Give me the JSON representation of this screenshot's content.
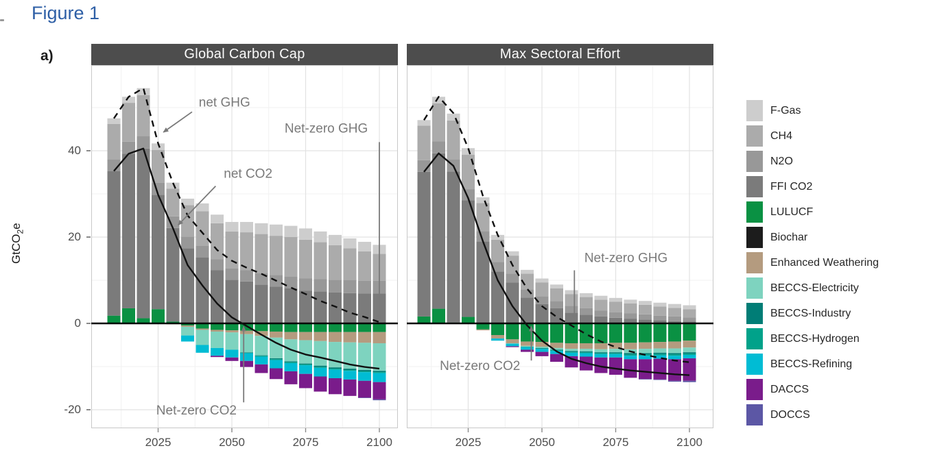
{
  "figure_label": "Figure 1",
  "panel_tag": "a)",
  "colors": {
    "title_blue": "#2E5FA6",
    "strip_bg": "#4D4D4D",
    "strip_text": "#FAFAFA",
    "annotation_gray": "#7A7A7A",
    "axis_text": "#4D4D4D",
    "grid_major": "#E2E2E2",
    "grid_minor": "#F1F1F1",
    "panel_border": "#C8C8C8",
    "zero_line": "#000000",
    "net_line": "#111111"
  },
  "chart_data": {
    "type": "bar",
    "stacked": true,
    "title": "Figure 1",
    "ylabel": "GtCO2e",
    "xlabel": "",
    "ylim": [
      -24.3,
      59.8
    ],
    "yticks": [
      40,
      20,
      0,
      -20
    ],
    "xticks": [
      2025,
      2050,
      2075,
      2100
    ],
    "grid": true,
    "legend_position": "right",
    "years": [
      2010,
      2015,
      2020,
      2025,
      2030,
      2035,
      2040,
      2045,
      2050,
      2055,
      2060,
      2065,
      2070,
      2075,
      2080,
      2085,
      2090,
      2095,
      2100
    ],
    "legend": [
      "F-Gas",
      "CH4",
      "N2O",
      "FFI CO2",
      "LULUCF",
      "Biochar",
      "Enhanced Weathering",
      "BECCS-Electricity",
      "BECCS-Industry",
      "BECCS-Hydrogen",
      "BECCS-Refining",
      "DACCS",
      "DOCCS"
    ],
    "series_colors": {
      "F-Gas": "#CDCDCD",
      "CH4": "#ABABAB",
      "N2O": "#989898",
      "FFI CO2": "#7B7B7B",
      "LULUCF": "#0A9143",
      "Biochar": "#1C1C1C",
      "Enhanced Weathering": "#B49B7F",
      "BECCS-Electricity": "#7ED3BF",
      "BECCS-Industry": "#007D76",
      "BECCS-Hydrogen": "#00A28A",
      "BECCS-Refining": "#00BCD4",
      "DACCS": "#7A1C8B",
      "DOCCS": "#5C57A5"
    },
    "stack_order": [
      "LULUCF",
      "FFI CO2",
      "N2O",
      "CH4",
      "F-Gas",
      "Biochar",
      "Enhanced Weathering",
      "BECCS-Electricity",
      "BECCS-Industry",
      "BECCS-Hydrogen",
      "BECCS-Refining",
      "DACCS",
      "DOCCS"
    ],
    "panels": [
      {
        "title": "Global Carbon Cap",
        "series": {
          "F-Gas": [
            1.3,
            1.4,
            1.6,
            1.5,
            1.4,
            1.5,
            1.8,
            2.0,
            2.2,
            2.4,
            2.5,
            2.6,
            2.6,
            2.6,
            2.5,
            2.4,
            2.3,
            2.2,
            2.1
          ],
          "CH4": [
            8.2,
            9.0,
            9.5,
            7.6,
            6.4,
            7.3,
            8.0,
            8.3,
            8.6,
            8.8,
            9.0,
            9.1,
            9.1,
            9.0,
            8.5,
            8.0,
            7.4,
            6.8,
            6.2
          ],
          "N2O": [
            2.7,
            2.8,
            2.9,
            2.8,
            2.7,
            2.7,
            2.7,
            2.6,
            2.6,
            2.6,
            2.7,
            2.7,
            2.8,
            2.8,
            2.9,
            2.9,
            3.0,
            3.0,
            3.0
          ],
          "FFI CO2": [
            33.5,
            35.8,
            39.3,
            26.5,
            21.7,
            17.4,
            15.3,
            12.3,
            10.1,
            9.7,
            9.0,
            8.5,
            8.1,
            7.6,
            7.4,
            7.2,
            7.0,
            6.9,
            6.9
          ],
          "LULUCF": [
            1.8,
            3.5,
            1.2,
            3.3,
            0.4,
            -0.5,
            -1.2,
            -1.5,
            -1.6,
            -1.7,
            -1.8,
            -1.9,
            -2.0,
            -2.0,
            -2.0,
            -2.0,
            -2.0,
            -2.0,
            -2.0
          ],
          "Biochar": [
            0,
            0,
            0,
            0,
            0,
            0,
            0,
            0,
            0,
            0,
            0,
            0,
            0,
            0,
            0,
            0,
            0,
            0,
            0
          ],
          "Enhanced Weathering": [
            0,
            0,
            0,
            0,
            -0.2,
            -0.3,
            -0.3,
            -0.4,
            -0.5,
            -0.8,
            -1.1,
            -1.4,
            -1.7,
            -1.9,
            -2.1,
            -2.3,
            -2.4,
            -2.5,
            -2.6
          ],
          "BECCS-Electricity": [
            0,
            0,
            0,
            0,
            0,
            -2.0,
            -3.5,
            -3.8,
            -4.0,
            -4.2,
            -4.5,
            -4.8,
            -5.1,
            -5.4,
            -5.7,
            -5.9,
            -6.1,
            -6.3,
            -6.4
          ],
          "BECCS-Industry": [
            0,
            0,
            0,
            0,
            0,
            0,
            0,
            0,
            0,
            -0.1,
            -0.1,
            -0.2,
            -0.2,
            -0.2,
            -0.3,
            -0.3,
            -0.3,
            -0.3,
            -0.3
          ],
          "BECCS-Hydrogen": [
            0,
            0,
            0,
            0,
            0,
            0,
            0,
            0,
            0,
            -0.1,
            -0.2,
            -0.2,
            -0.2,
            -0.2,
            -0.2,
            -0.2,
            -0.2,
            -0.2,
            -0.2
          ],
          "BECCS-Refining": [
            0,
            0,
            0,
            0,
            0,
            -1.4,
            -1.8,
            -1.8,
            -1.8,
            -1.8,
            -1.8,
            -1.9,
            -1.9,
            -2.0,
            -2.0,
            -2.0,
            -2.0,
            -2.0,
            -2.1
          ],
          "DACCS": [
            0,
            0,
            0,
            0,
            0,
            0,
            0,
            -0.3,
            -0.8,
            -1.4,
            -2.0,
            -2.5,
            -3.0,
            -3.3,
            -3.5,
            -3.7,
            -3.8,
            -3.9,
            -4.0
          ],
          "DOCCS": [
            0,
            0,
            0,
            0,
            0,
            0,
            0,
            0,
            0,
            0,
            0,
            0,
            0,
            0,
            0,
            0,
            0,
            -0.1,
            -0.2
          ]
        },
        "lines": [
          {
            "name": "net GHG",
            "style": "dashed",
            "values": [
              47.5,
              52.5,
              54.5,
              41.7,
              32.6,
              25.0,
              21.0,
              17.0,
              14.5,
              12.9,
              11.5,
              9.9,
              8.3,
              6.8,
              5.2,
              3.9,
              2.5,
              1.5,
              0.3
            ]
          },
          {
            "name": "net CO2",
            "style": "solid",
            "values": [
              35.3,
              39.3,
              40.5,
              29.8,
              22.1,
              13.5,
              8.8,
              4.6,
              1.4,
              -0.6,
              -2.6,
              -4.5,
              -6.1,
              -7.2,
              -7.9,
              -8.7,
              -9.5,
              -10.1,
              -10.5
            ]
          }
        ],
        "annotations": [
          {
            "label": "net GHG",
            "kind": "arrow",
            "text_year": 2047.5,
            "text_value": 51.0,
            "from_year": 2036.5,
            "from_value": 49.0,
            "to_year": 2026.8,
            "to_value": 44.3
          },
          {
            "label": "net CO2",
            "kind": "arrow",
            "text_year": 2055.5,
            "text_value": 34.5,
            "from_year": 2044.5,
            "from_value": 31.8,
            "to_year": 2031.8,
            "to_value": 22.8
          },
          {
            "label": "Net-zero GHG",
            "kind": "vline",
            "text_year": 2082.0,
            "text_value": 45.0,
            "year": 2100,
            "from_value": 42.0,
            "to_value": 0.9
          },
          {
            "label": "Net-zero CO2",
            "kind": "varrow",
            "text_year": 2038.0,
            "text_value": -20.3,
            "year": 2054,
            "from_value": -18.3,
            "to_value": -0.7
          }
        ]
      },
      {
        "title": "Max Sectoral Effort",
        "series": {
          "F-Gas": [
            1.3,
            1.5,
            1.6,
            1.5,
            1.3,
            1.1,
            1.0,
            0.9,
            0.9,
            0.9,
            0.9,
            0.9,
            0.9,
            0.9,
            0.9,
            0.9,
            0.9,
            0.9,
            0.9
          ],
          "CH4": [
            8.0,
            8.8,
            9.0,
            8.0,
            6.5,
            5.2,
            4.2,
            3.6,
            3.2,
            2.9,
            2.7,
            2.6,
            2.5,
            2.4,
            2.3,
            2.2,
            2.1,
            2.0,
            1.9
          ],
          "N2O": [
            2.7,
            2.8,
            2.8,
            2.6,
            2.4,
            2.2,
            2.0,
            1.9,
            1.8,
            1.7,
            1.6,
            1.5,
            1.4,
            1.3,
            1.2,
            1.2,
            1.1,
            1.1,
            1.0
          ],
          "FFI CO2": [
            33.5,
            36.0,
            35.0,
            27.0,
            19.0,
            12.0,
            9.5,
            6.0,
            4.5,
            3.5,
            2.5,
            2.0,
            1.6,
            1.3,
            1.1,
            0.9,
            0.7,
            0.5,
            0.4
          ],
          "LULUCF": [
            1.6,
            3.4,
            0.2,
            1.5,
            -1.4,
            -2.7,
            -3.7,
            -4.2,
            -4.3,
            -4.5,
            -4.6,
            -4.6,
            -4.6,
            -4.5,
            -4.5,
            -4.4,
            -4.3,
            -4.2,
            -4.0
          ],
          "Biochar": [
            0,
            0,
            0,
            0,
            0,
            0,
            0,
            0,
            0,
            0,
            0,
            0,
            0,
            0,
            0,
            0,
            0,
            0,
            0
          ],
          "Enhanced Weathering": [
            0,
            0,
            0,
            0,
            -0.2,
            -0.8,
            -0.9,
            -1.0,
            -1.1,
            -1.2,
            -1.3,
            -1.3,
            -1.4,
            -1.4,
            -1.5,
            -1.5,
            -1.5,
            -1.6,
            -1.6
          ],
          "BECCS-Electricity": [
            0,
            0,
            0,
            0,
            0,
            0,
            -0.1,
            -0.2,
            -0.3,
            -0.4,
            -0.5,
            -0.6,
            -0.7,
            -0.8,
            -0.9,
            -1.0,
            -1.0,
            -1.1,
            -1.1
          ],
          "BECCS-Industry": [
            0,
            0,
            0,
            0,
            0,
            0,
            0,
            0,
            -0.1,
            -0.1,
            -0.2,
            -0.2,
            -0.2,
            -0.2,
            -0.3,
            -0.3,
            -0.3,
            -0.3,
            -0.3
          ],
          "BECCS-Hydrogen": [
            0,
            0,
            0,
            0,
            0,
            0,
            0,
            -0.1,
            -0.1,
            -0.2,
            -0.2,
            -0.2,
            -0.2,
            -0.2,
            -0.3,
            -0.3,
            -0.3,
            -0.3,
            -0.3
          ],
          "BECCS-Refining": [
            0,
            0,
            0,
            0,
            0,
            -0.5,
            -0.6,
            -0.6,
            -0.7,
            -0.7,
            -0.8,
            -0.8,
            -0.8,
            -0.8,
            -0.8,
            -0.8,
            -0.8,
            -0.8,
            -0.8
          ],
          "DACCS": [
            0,
            0,
            0,
            0,
            0,
            0,
            -0.2,
            -0.5,
            -1.0,
            -1.8,
            -2.6,
            -3.2,
            -3.6,
            -4.0,
            -4.3,
            -4.6,
            -4.8,
            -5.0,
            -5.2
          ],
          "DOCCS": [
            0,
            0,
            0,
            0,
            0,
            0,
            0,
            0,
            0,
            0,
            0,
            0,
            0,
            0,
            0,
            -0.1,
            -0.1,
            -0.2,
            -0.3
          ]
        },
        "lines": [
          {
            "name": "net GHG",
            "style": "dashed",
            "values": [
              47.1,
              52.5,
              48.7,
              40.6,
              29.5,
              20.5,
              13.5,
              8.0,
              4.0,
              1.5,
              -0.5,
              -2.5,
              -4.2,
              -5.5,
              -6.5,
              -7.3,
              -8.0,
              -8.6,
              -9.0
            ]
          },
          {
            "name": "net CO2",
            "style": "solid",
            "values": [
              35.1,
              39.4,
              36.5,
              29.0,
              19.0,
              10.0,
              4.0,
              -0.5,
              -4.0,
              -6.5,
              -8.2,
              -9.2,
              -10.0,
              -10.5,
              -10.9,
              -11.2,
              -11.5,
              -11.8,
              -12.0
            ]
          }
        ],
        "annotations": [
          {
            "label": "Net-zero GHG",
            "kind": "vline",
            "text_year": 2078.5,
            "text_value": 15.0,
            "year": 2061,
            "from_value": 12.3,
            "to_value": 0.9
          },
          {
            "label": "Net-zero CO2",
            "kind": "varrow",
            "text_year": 2029.0,
            "text_value": -10.0,
            "year": 2046.4,
            "from_value": -8.6,
            "to_value": -0.7
          }
        ]
      }
    ]
  }
}
